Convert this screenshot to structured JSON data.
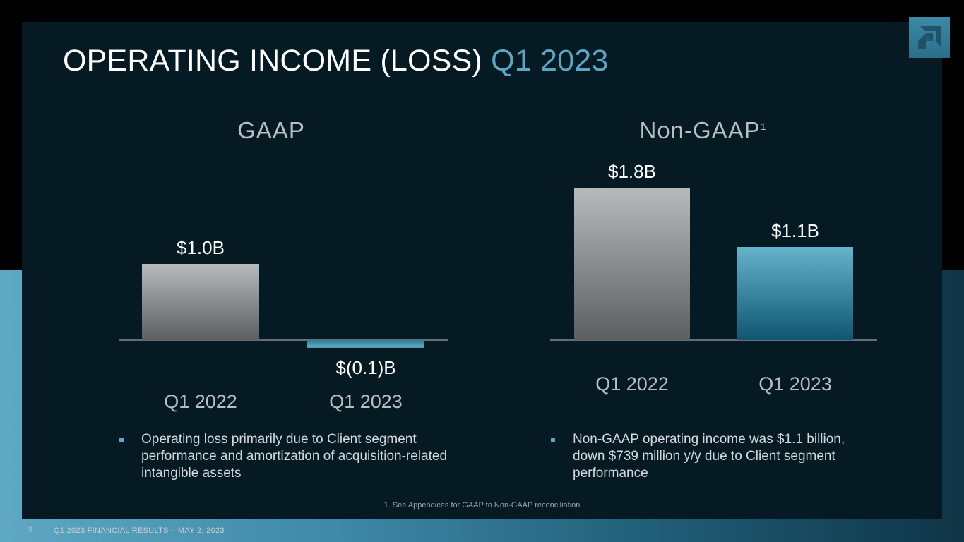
{
  "title": {
    "main": "OPERATING INCOME (LOSS)",
    "accent": "Q1 2023"
  },
  "logo": {
    "icon": "amd-arrow-logo-icon"
  },
  "colors": {
    "accent": "#5aa6c3",
    "bar_gray_top": "#b8b9bb",
    "bar_gray_bottom": "#5d5e60",
    "bar_teal_top": "#66b3cc",
    "bar_teal_bottom": "#0f5670"
  },
  "sections": {
    "gaap": {
      "title": "GAAP"
    },
    "nongaap": {
      "title": "Non-GAAP",
      "sup": "1"
    }
  },
  "chart_data": [
    {
      "type": "bar",
      "title": "GAAP",
      "categories": [
        "Q1 2022",
        "Q1 2023"
      ],
      "values": [
        1.0,
        -0.1
      ],
      "labels": [
        "$1.0B",
        "$(0.1)B"
      ],
      "ylabel": "",
      "xlabel": "",
      "units": "$B"
    },
    {
      "type": "bar",
      "title": "Non-GAAP",
      "categories": [
        "Q1 2022",
        "Q1 2023"
      ],
      "values": [
        1.8,
        1.1
      ],
      "labels": [
        "$1.8B",
        "$1.1B"
      ],
      "ylabel": "",
      "xlabel": "",
      "units": "$B"
    }
  ],
  "bullets": {
    "gaap": "Operating loss primarily due to Client segment performance and amortization of acquisition-related intangible assets",
    "nongaap": "Non-GAAP operating income was $1.1 billion, down $739 million y/y due to Client segment performance"
  },
  "footnote": "1. See Appendices for GAAP to Non-GAAP reconciliation",
  "footer": {
    "page": "9",
    "text": "Q1 2023 FINANCIAL RESULTS – MAY 2, 2023"
  }
}
